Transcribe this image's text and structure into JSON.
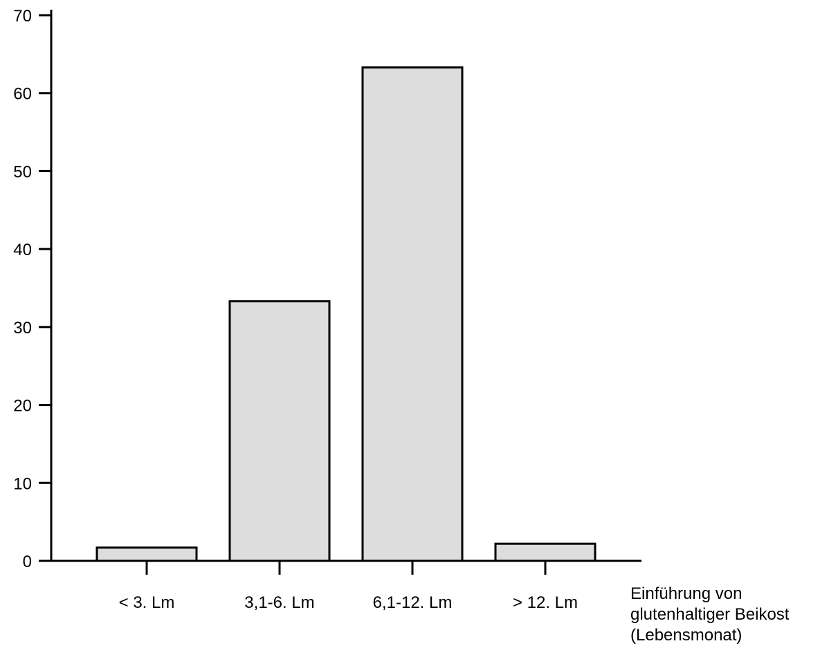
{
  "chart_data": {
    "type": "bar",
    "categories": [
      "< 3. Lm",
      "3,1-6. Lm",
      "6,1-12. Lm",
      "> 12. Lm"
    ],
    "values": [
      1.7,
      33.3,
      63.3,
      2.2
    ],
    "title": "",
    "xlabel": [
      "Einführung von",
      "glutenhaltiger Beikost",
      "(Lebensmonat)"
    ],
    "ylabel": "",
    "ylim": [
      0,
      70
    ],
    "yticks": [
      0,
      10,
      20,
      30,
      40,
      50,
      60,
      70
    ],
    "grid": false,
    "colors": {
      "bar_fill": "#dddddd",
      "stroke": "#000000"
    }
  }
}
